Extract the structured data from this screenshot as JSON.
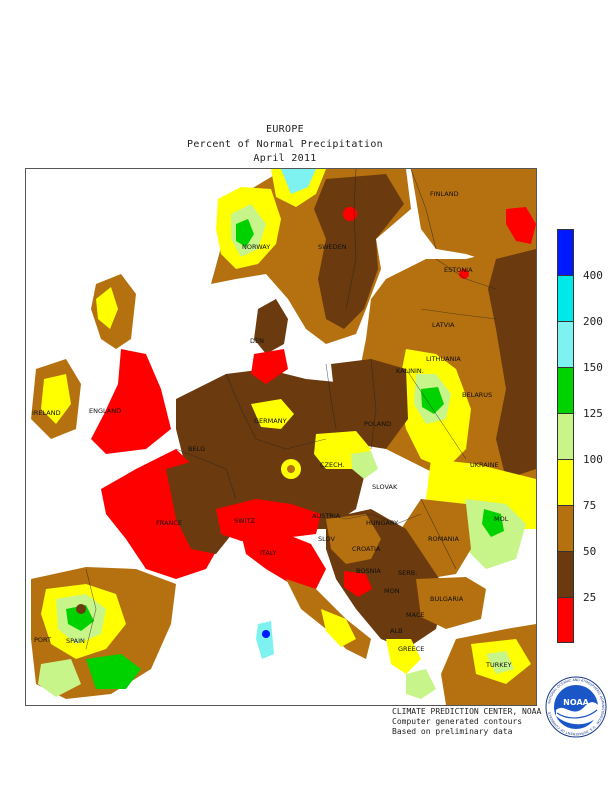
{
  "title": {
    "region": "EUROPE",
    "metric": "Percent of Normal Precipitation",
    "period": "April 2011"
  },
  "legend": {
    "colors": [
      "#ff0000",
      "#6b3a0e",
      "#b5710f",
      "#ffff00",
      "#c8f58a",
      "#00d200",
      "#7ef1f1",
      "#00e8e8",
      "#0019ff"
    ],
    "ticks": [
      "25",
      "50",
      "75",
      "100",
      "125",
      "150",
      "200",
      "400"
    ]
  },
  "map_labels": {
    "finland": "FINLAND",
    "norway": "NORWAY",
    "sweden": "SWEDEN",
    "estonia": "ESTONIA",
    "latvia": "LATVIA",
    "lithuania": "LITHUANIA",
    "denmark": "DEN",
    "kaliningrad": "KALININ.",
    "belarus": "BELARUS",
    "ireland": "IRELAND",
    "england": "ENGLAND",
    "germany": "GERMANY",
    "poland": "POLAND",
    "belgium": "BELG",
    "czech": "CZECH.",
    "slovakia": "SLOVAK",
    "ukraine": "UKRAINE",
    "france": "FRANCE",
    "switzerland": "SWITZ",
    "austria": "AUSTRIA",
    "hungary": "HUNGARY",
    "moldova": "MOL",
    "romania": "ROMANIA",
    "slovenia": "SLOV",
    "croatia": "CROATIA",
    "italy": "ITALY",
    "bosnia": "BOSNIA",
    "serbia": "SERB.",
    "bulgaria": "BULGARIA",
    "montenegro": "MON",
    "macedonia": "MACE",
    "albania": "ALB",
    "greece": "GREECE",
    "turkey": "TURKEY",
    "portugal": "PORT",
    "spain": "SPAIN"
  },
  "credits": {
    "line1": "CLIMATE PREDICTION CENTER, NOAA",
    "line2": "Computer generated contours",
    "line3": "Based on preliminary data"
  },
  "logo": {
    "text": "NOAA",
    "ring_text": "NATIONAL OCEANIC AND ATMOSPHERIC ADMINISTRATION · U.S. DEPARTMENT OF COMMERCE"
  }
}
